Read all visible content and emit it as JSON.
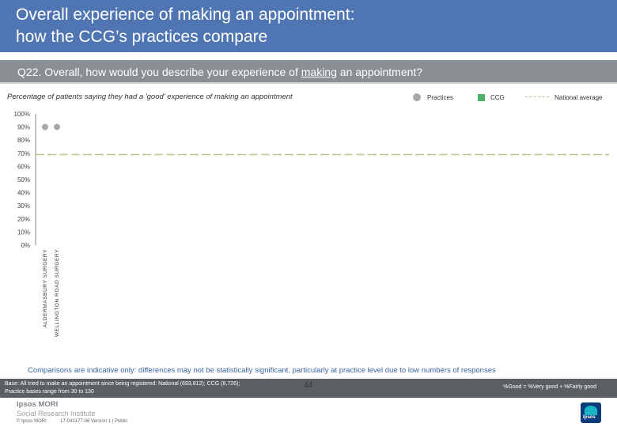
{
  "header": {
    "title_line1": "Overall experience of making an appointment:",
    "title_line2": "how the CCG’s practices compare"
  },
  "question": {
    "prefix": "Q22. Overall, how would you describe your experience of ",
    "underlined": "making",
    "suffix": " an appointment?"
  },
  "legend": {
    "practices": "Practices",
    "ccg": "CCG",
    "national": "National average"
  },
  "colors": {
    "title_bar": "#4f76b2",
    "practices_marker": "#a6a8ab",
    "ccg_marker": "#4db26a",
    "national_line": "#b6c78a",
    "note_text": "#3a64a2"
  },
  "chart_data": {
    "type": "scatter",
    "title": "Percentage of patients saying they had a 'good' experience of making an appointment",
    "categories": [
      "ALDERMASBURY SURGERY",
      "WELLINGTON ROAD SURGERY"
    ],
    "series": [
      {
        "name": "Practices",
        "values": [
          90,
          90
        ]
      }
    ],
    "reference_lines": [
      {
        "name": "National average",
        "value": 69
      }
    ],
    "ylim": [
      0,
      100
    ],
    "yticks": [
      "0%",
      "10%",
      "20%",
      "30%",
      "40%",
      "50%",
      "60%",
      "70%",
      "80%",
      "90%",
      "100%"
    ],
    "grid": false,
    "legend_position": "top-right"
  },
  "footer": {
    "comparisons_note": "Comparisons are indicative only: differences may not be statistically significant, particularly at practice level due to low numbers of responses",
    "base_line1": "Base: All tried to make an appointment since being registered: National (693,812); CCG (8,726);",
    "base_line2": "Practice bases range from 30 to 130",
    "good_definition": "%Good = %Very good + %Fairly good",
    "page_number": "44",
    "brand_line1": "Ipsos MORI",
    "brand_line2": "Social Research Institute",
    "copyright": "© Ipsos MORI",
    "job_ref": "17-043177-06 Version 1 | Public",
    "logo_label": "Ipsos"
  }
}
